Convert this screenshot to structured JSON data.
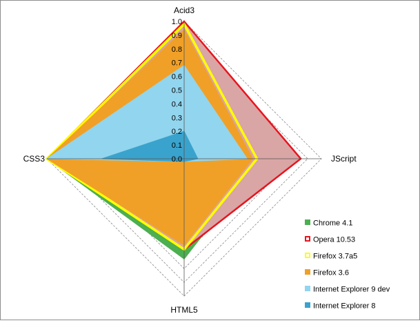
{
  "chart_data": {
    "type": "radar",
    "axes": [
      "Acid3",
      "JScript",
      "HTML5",
      "CSS3"
    ],
    "rlim": [
      0.0,
      1.0
    ],
    "tick_labels": [
      "0.0",
      "0.1",
      "0.2",
      "0.3",
      "0.4",
      "0.5",
      "0.6",
      "0.7",
      "0.8",
      "0.9",
      "1.0"
    ],
    "legend_position": "bottom-right",
    "series": [
      {
        "name": "Chrome 4.1",
        "type": "filled",
        "color": "#4caf50",
        "values": [
          1.0,
          0.57,
          0.73,
          1.0
        ]
      },
      {
        "name": "Opera 10.53",
        "type": "filled",
        "color": "#d9a5a5",
        "edge_color": "#e8141e",
        "values": [
          1.0,
          0.85,
          0.66,
          1.0
        ]
      },
      {
        "name": "Firefox 3.7a5",
        "type": "line",
        "color": "#ffff00",
        "values": [
          0.98,
          0.53,
          0.66,
          1.0
        ]
      },
      {
        "name": "Firefox 3.6",
        "type": "filled",
        "color": "#f0a027",
        "values": [
          0.94,
          0.5,
          0.63,
          1.0
        ]
      },
      {
        "name": "Internet Explorer 9 dev",
        "type": "filled",
        "color": "#92d5ee",
        "values": [
          0.68,
          0.46,
          0.02,
          1.0
        ]
      },
      {
        "name": "Internet Explorer 8",
        "type": "filled",
        "color": "#3aa3cd",
        "values": [
          0.2,
          0.1,
          0.02,
          0.6
        ]
      }
    ]
  }
}
